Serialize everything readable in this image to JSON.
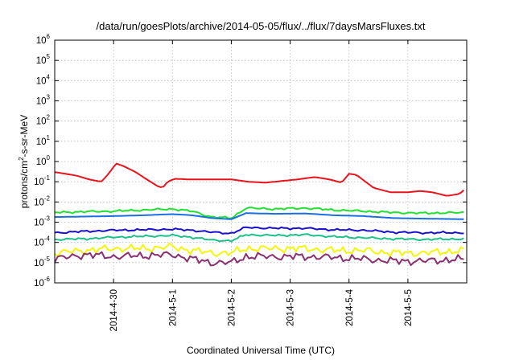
{
  "chart_data": {
    "type": "line",
    "title": "/data/run/goesPlots/archive/2014-05-05/flux/../flux/7daysMarsFluxes.txt",
    "xlabel": "Coordinated Universal Time (UTC)",
    "ylabel": "protons/cm2-s-sr-MeV",
    "ylabel_parts": {
      "pre": "protons/cm",
      "sup": "2",
      "post": "-s-sr-MeV"
    },
    "y_scale": "log",
    "ylim": [
      1e-06,
      1000000.0
    ],
    "xlim": [
      "2014-04-29T00:00",
      "2014-05-05T23:59"
    ],
    "grid": true,
    "y_ticks": [
      {
        "base": "10",
        "exp": "-6",
        "value": 1e-06
      },
      {
        "base": "10",
        "exp": "-5",
        "value": 1e-05
      },
      {
        "base": "10",
        "exp": "-4",
        "value": 0.0001
      },
      {
        "base": "10",
        "exp": "-3",
        "value": 0.001
      },
      {
        "base": "10",
        "exp": "-2",
        "value": 0.01
      },
      {
        "base": "10",
        "exp": "-1",
        "value": 0.1
      },
      {
        "base": "10",
        "exp": "0",
        "value": 1.0
      },
      {
        "base": "10",
        "exp": "1",
        "value": 10.0
      },
      {
        "base": "10",
        "exp": "2",
        "value": 100.0
      },
      {
        "base": "10",
        "exp": "3",
        "value": 1000.0
      },
      {
        "base": "10",
        "exp": "4",
        "value": 10000.0
      },
      {
        "base": "10",
        "exp": "5",
        "value": 100000.0
      },
      {
        "base": "10",
        "exp": "6",
        "value": 1000000.0
      }
    ],
    "x_ticks": [
      {
        "label": "2014-4-30",
        "value": "2014-04-30T00:00"
      },
      {
        "label": "2014-5-1",
        "value": "2014-05-01T00:00"
      },
      {
        "label": "2014-5-2",
        "value": "2014-05-02T00:00"
      },
      {
        "label": "2014-5-3",
        "value": "2014-05-03T00:00"
      },
      {
        "label": "2014-5-4",
        "value": "2014-05-04T00:00"
      },
      {
        "label": "2014-5-5",
        "value": "2014-05-05T00:00"
      }
    ],
    "series": [
      {
        "color": "#e8141c",
        "style": "smooth",
        "x": [
          "2014-04-29T00:00",
          "2014-04-29T09:00",
          "2014-04-29T14:00",
          "2014-04-29T19:00",
          "2014-04-29T22:00",
          "2014-04-30T01:00",
          "2014-04-30T04:00",
          "2014-04-30T09:00",
          "2014-04-30T14:00",
          "2014-04-30T18:00",
          "2014-04-30T20:00",
          "2014-04-30T22:00",
          "2014-05-01T01:00",
          "2014-05-01T07:00",
          "2014-05-01T14:00",
          "2014-05-02T00:00",
          "2014-05-02T07:00",
          "2014-05-02T14:00",
          "2014-05-02T21:00",
          "2014-05-03T03:00",
          "2014-05-03T10:00",
          "2014-05-03T16:00",
          "2014-05-03T21:00",
          "2014-05-04T00:00",
          "2014-05-04T03:00",
          "2014-05-04T10:00",
          "2014-05-04T17:00",
          "2014-05-05T00:00",
          "2014-05-05T05:00",
          "2014-05-05T10:00",
          "2014-05-05T16:00",
          "2014-05-05T21:00",
          "2014-05-05T23:59"
        ],
        "y": [
          0.3,
          0.2,
          0.13,
          0.1,
          0.25,
          0.8,
          0.6,
          0.3,
          0.12,
          0.06,
          0.05,
          0.1,
          0.14,
          0.13,
          0.13,
          0.13,
          0.1,
          0.09,
          0.11,
          0.13,
          0.17,
          0.13,
          0.09,
          0.25,
          0.22,
          0.05,
          0.03,
          0.03,
          0.035,
          0.03,
          0.02,
          0.025,
          0.05
        ]
      },
      {
        "color": "#22e032",
        "style": "jagged",
        "x": [
          "2014-04-29T00:00",
          "2014-04-29T12:00",
          "2014-04-30T00:00",
          "2014-04-30T12:00",
          "2014-05-01T00:00",
          "2014-05-01T08:00",
          "2014-05-01T16:00",
          "2014-05-02T00:00",
          "2014-05-02T06:00",
          "2014-05-02T18:00",
          "2014-05-03T06:00",
          "2014-05-03T18:00",
          "2014-05-04T06:00",
          "2014-05-04T18:00",
          "2014-05-05T06:00",
          "2014-05-05T23:59"
        ],
        "y": [
          0.003,
          0.0033,
          0.0035,
          0.004,
          0.0045,
          0.0035,
          0.0018,
          0.0016,
          0.005,
          0.0045,
          0.005,
          0.004,
          0.0035,
          0.003,
          0.0028,
          0.003
        ]
      },
      {
        "color": "#1a6ee0",
        "style": "smooth",
        "x": [
          "2014-04-29T00:00",
          "2014-04-29T12:00",
          "2014-04-30T00:00",
          "2014-04-30T12:00",
          "2014-05-01T00:00",
          "2014-05-01T08:00",
          "2014-05-01T16:00",
          "2014-05-02T00:00",
          "2014-05-02T06:00",
          "2014-05-02T18:00",
          "2014-05-03T06:00",
          "2014-05-03T18:00",
          "2014-05-04T06:00",
          "2014-05-04T18:00",
          "2014-05-05T06:00",
          "2014-05-05T23:59"
        ],
        "y": [
          0.0018,
          0.0019,
          0.002,
          0.0022,
          0.0025,
          0.0022,
          0.0016,
          0.0014,
          0.0028,
          0.0026,
          0.0027,
          0.0022,
          0.002,
          0.0016,
          0.0015,
          0.0014
        ]
      },
      {
        "color": "#1a10d0",
        "style": "jagged",
        "x": [
          "2014-04-29T00:00",
          "2014-04-29T12:00",
          "2014-04-30T00:00",
          "2014-04-30T12:00",
          "2014-05-01T00:00",
          "2014-05-01T08:00",
          "2014-05-01T16:00",
          "2014-05-02T00:00",
          "2014-05-02T06:00",
          "2014-05-02T18:00",
          "2014-05-03T06:00",
          "2014-05-03T18:00",
          "2014-05-04T06:00",
          "2014-05-04T18:00",
          "2014-05-05T06:00",
          "2014-05-05T23:59"
        ],
        "y": [
          0.0003,
          0.00035,
          0.0004,
          0.00042,
          0.00045,
          0.0004,
          0.00032,
          0.00028,
          0.00055,
          0.0005,
          0.0005,
          0.00042,
          0.0004,
          0.00032,
          0.0003,
          0.0003
        ]
      },
      {
        "color": "#1ec08a",
        "style": "jagged",
        "x": [
          "2014-04-29T00:00",
          "2014-04-29T12:00",
          "2014-04-30T00:00",
          "2014-04-30T12:00",
          "2014-05-01T00:00",
          "2014-05-01T08:00",
          "2014-05-01T16:00",
          "2014-05-02T00:00",
          "2014-05-02T06:00",
          "2014-05-02T18:00",
          "2014-05-03T06:00",
          "2014-05-03T18:00",
          "2014-05-04T06:00",
          "2014-05-04T18:00",
          "2014-05-05T06:00",
          "2014-05-05T23:59"
        ],
        "y": [
          0.00014,
          0.00015,
          0.00018,
          0.0002,
          0.00022,
          0.00018,
          0.00013,
          0.00012,
          0.00024,
          0.00022,
          0.00024,
          0.00019,
          0.00017,
          0.00015,
          0.00014,
          0.00015
        ]
      },
      {
        "color": "#f5f50a",
        "style": "jagged",
        "x": [
          "2014-04-29T00:00",
          "2014-04-29T12:00",
          "2014-04-30T00:00",
          "2014-04-30T12:00",
          "2014-05-01T00:00",
          "2014-05-01T08:00",
          "2014-05-01T16:00",
          "2014-05-02T00:00",
          "2014-05-02T06:00",
          "2014-05-02T18:00",
          "2014-05-03T06:00",
          "2014-05-03T18:00",
          "2014-05-04T06:00",
          "2014-05-04T18:00",
          "2014-05-05T06:00",
          "2014-05-05T23:59"
        ],
        "y": [
          3e-05,
          4e-05,
          5e-05,
          5e-05,
          6e-05,
          4e-05,
          3e-05,
          3e-05,
          5e-05,
          5e-05,
          5e-05,
          4e-05,
          4e-05,
          3e-05,
          3e-05,
          4e-05
        ]
      },
      {
        "color": "#8a2f72",
        "style": "jagged",
        "x": [
          "2014-04-29T00:00",
          "2014-04-29T12:00",
          "2014-04-30T00:00",
          "2014-04-30T12:00",
          "2014-05-01T00:00",
          "2014-05-01T08:00",
          "2014-05-01T16:00",
          "2014-05-02T00:00",
          "2014-05-02T06:00",
          "2014-05-02T18:00",
          "2014-05-03T06:00",
          "2014-05-03T18:00",
          "2014-05-04T06:00",
          "2014-05-04T18:00",
          "2014-05-05T06:00",
          "2014-05-05T23:59"
        ],
        "y": [
          1.5e-05,
          2.5e-05,
          2e-05,
          2.2e-05,
          2.5e-05,
          1.5e-05,
          1e-05,
          1e-05,
          2e-05,
          2e-05,
          2e-05,
          1.8e-05,
          1.5e-05,
          1.2e-05,
          1.2e-05,
          1.5e-05
        ]
      }
    ]
  }
}
